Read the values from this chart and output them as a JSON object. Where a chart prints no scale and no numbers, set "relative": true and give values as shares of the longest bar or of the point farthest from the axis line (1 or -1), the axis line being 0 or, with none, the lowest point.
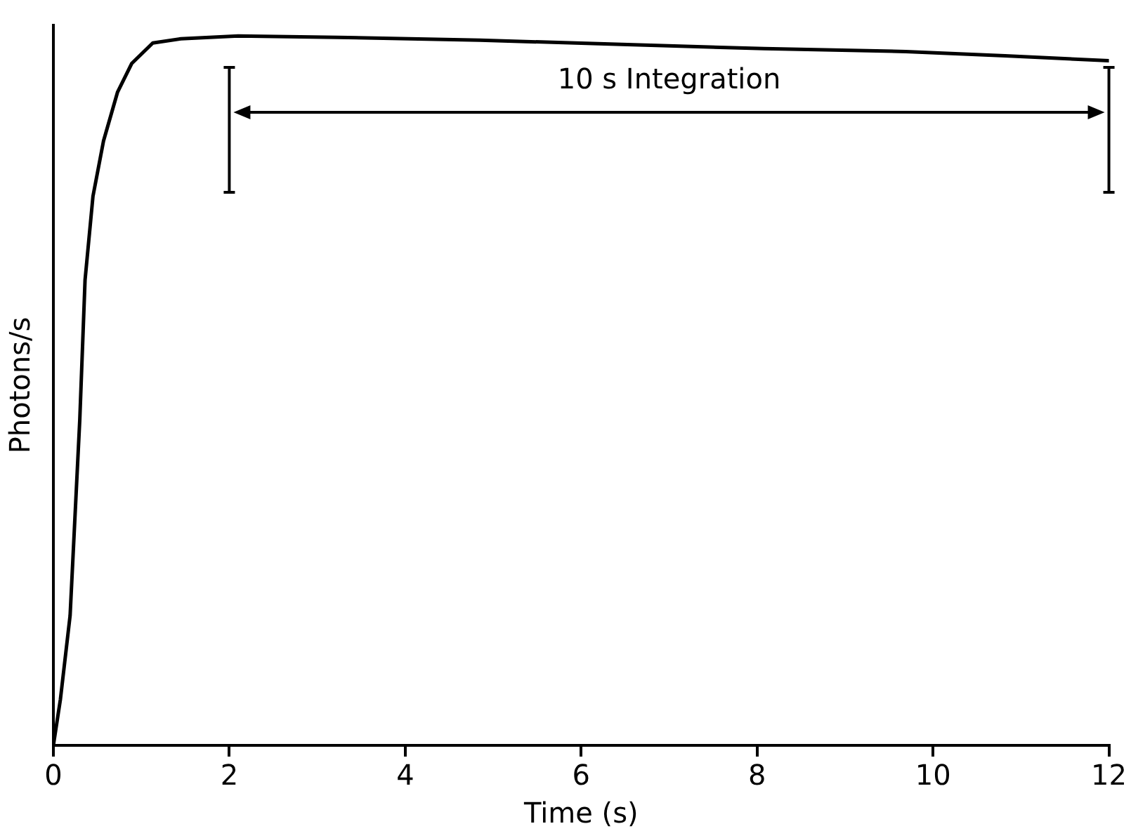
{
  "chart_data": {
    "type": "line",
    "relative": true,
    "xlabel": "Time (s)",
    "ylabel": "Photons/s",
    "x": [
      0,
      0.08,
      0.19,
      0.3,
      0.36,
      0.45,
      0.57,
      0.73,
      0.89,
      1.13,
      1.45,
      2.1,
      3.23,
      4.85,
      6.46,
      8.08,
      9.69,
      10.82,
      12
    ],
    "series": [
      {
        "color": "#000000",
        "values": [
          0,
          0.065,
          0.183,
          0.459,
          0.656,
          0.774,
          0.852,
          0.921,
          0.961,
          0.99,
          0.996,
          1,
          0.998,
          0.994,
          0.988,
          0.982,
          0.978,
          0.972,
          0.965
        ]
      }
    ],
    "xlim": [
      0,
      12
    ],
    "xticks": [
      0,
      2,
      4,
      6,
      8,
      10,
      12
    ],
    "ref_lines": [
      {
        "axis": "x",
        "value": 2
      },
      {
        "axis": "x",
        "value": 12
      }
    ],
    "annotations": [
      "10 s Integration"
    ],
    "grid": false,
    "legend": false,
    "marker": "none",
    "line_style": "solid"
  }
}
